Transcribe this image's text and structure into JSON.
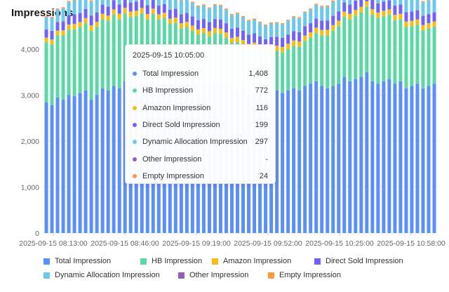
{
  "header": {
    "title": "Impressions"
  },
  "colors": {
    "total": "#5b8ff9",
    "hb": "#5ad8a6",
    "amazon": "#f6bd16",
    "direct": "#7262fd",
    "dynamic": "#6dc8ec",
    "other": "#945fb9",
    "empty": "#ff9845",
    "grid": "#e8e8e8"
  },
  "tooltip": {
    "time": "2025-09-15 10:05:00",
    "rows": [
      {
        "name": "Total Impression",
        "value": "1,408",
        "color": "#5b8ff9"
      },
      {
        "name": "HB Impression",
        "value": "772",
        "color": "#5ad8a6"
      },
      {
        "name": "Amazon Impression",
        "value": "116",
        "color": "#f6bd16"
      },
      {
        "name": "Direct Sold Impression",
        "value": "199",
        "color": "#7262fd"
      },
      {
        "name": "Dynamic Allocation Impression",
        "value": "297",
        "color": "#6dc8ec"
      },
      {
        "name": "Other Impression",
        "value": "-",
        "color": "#945fb9"
      },
      {
        "name": "Empty Impression",
        "value": "24",
        "color": "#ff9845"
      }
    ]
  },
  "chart_data": {
    "type": "bar",
    "title": "Impressions",
    "ylim": [
      0,
      4000
    ],
    "yticks": [
      0,
      1000,
      2000,
      3000,
      4000
    ],
    "ytick_labels": [
      "0",
      "1,000",
      "2,000",
      "3,000",
      "4,000"
    ],
    "xtick_labels": [
      "2025-09-15 08:13:00",
      "2025-09-15 08:46:00",
      "2025-09-15 09:19:00",
      "2025-09-15 09:52:00",
      "2025-09-15 10:25:00",
      "2025-09-15 10:58:00"
    ],
    "grid": true,
    "legend_position": "bottom",
    "series": [
      {
        "name": "Total Impression",
        "key": "total",
        "values": [
          2850,
          2780,
          2950,
          2900,
          3000,
          2980,
          3050,
          3100,
          2900,
          3000,
          3150,
          3100,
          3200,
          3150,
          3300,
          3250,
          3300,
          3400,
          3300,
          3450,
          3350,
          3400,
          3300,
          3350,
          3250,
          3300,
          3250,
          3200,
          3250,
          3200,
          3300,
          3300,
          3250,
          3150,
          3200,
          3150,
          3100,
          3150,
          3100,
          3050,
          3100,
          3100,
          3050,
          3100,
          3150,
          3100,
          3200,
          3250,
          3300,
          3200,
          3150,
          3200,
          3250,
          3400,
          3300,
          3350,
          3400,
          3500,
          3300,
          3250,
          3300,
          3350,
          3250,
          3300,
          3150,
          3200,
          3250,
          3150,
          3200,
          3250
        ]
      },
      {
        "name": "HB Impression",
        "key": "hb",
        "values": [
          1300,
          1320,
          1350,
          1400,
          1420,
          1450,
          1430,
          1460,
          1500,
          1480,
          1500,
          1520,
          1550,
          1500,
          1480,
          1450,
          1420,
          1380,
          1350,
          1320,
          1300,
          1280,
          1250,
          1220,
          1200,
          1180,
          1150,
          1120,
          1100,
          1080,
          1050,
          1030,
          1000,
          980,
          950,
          930,
          900,
          880,
          860,
          850,
          850,
          860,
          880,
          900,
          920,
          950,
          980,
          1000,
          1050,
          1100,
          1150,
          1200,
          1250,
          1300,
          1350,
          1380,
          1400,
          1420,
          1450,
          1430,
          1420,
          1400,
          1380,
          1350,
          1330,
          1300,
          1280,
          1260,
          1250,
          1240
        ]
      },
      {
        "name": "Amazon Impression",
        "key": "amazon",
        "values": [
          100,
          110,
          105,
          110,
          115,
          120,
          110,
          115,
          120,
          115,
          118,
          110,
          115,
          120,
          118,
          116,
          115,
          114,
          112,
          110,
          108,
          110,
          112,
          115,
          114,
          113,
          112,
          110,
          108,
          110,
          112,
          113,
          114,
          116,
          118,
          117,
          116,
          115,
          116,
          116,
          115,
          114,
          116,
          118,
          120,
          118,
          116,
          115,
          116,
          118,
          120,
          122,
          118,
          116,
          118,
          120,
          122,
          120,
          118,
          116,
          115,
          114,
          116,
          118,
          120,
          118,
          116,
          115,
          114,
          113
        ]
      },
      {
        "name": "Direct Sold Impression",
        "key": "direct",
        "values": [
          180,
          190,
          185,
          195,
          200,
          205,
          195,
          200,
          210,
          205,
          200,
          195,
          200,
          205,
          200,
          198,
          196,
          195,
          192,
          190,
          188,
          190,
          192,
          195,
          196,
          198,
          199,
          200,
          198,
          197,
          196,
          198,
          199,
          200,
          202,
          201,
          200,
          199,
          199,
          199,
          198,
          197,
          199,
          200,
          202,
          201,
          200,
          199,
          200,
          202,
          204,
          206,
          204,
          202,
          203,
          205,
          207,
          205,
          203,
          201,
          200,
          199,
          200,
          202,
          204,
          202,
          200,
          199,
          198,
          197
        ]
      },
      {
        "name": "Dynamic Allocation Impression",
        "key": "dynamic",
        "values": [
          270,
          280,
          275,
          285,
          290,
          300,
          290,
          295,
          305,
          300,
          298,
          295,
          300,
          305,
          300,
          298,
          296,
          295,
          292,
          290,
          288,
          290,
          292,
          295,
          296,
          298,
          297,
          296,
          295,
          296,
          297,
          298,
          297,
          297,
          298,
          297,
          297,
          296,
          297,
          297,
          296,
          295,
          297,
          298,
          300,
          299,
          298,
          297,
          298,
          300,
          302,
          304,
          302,
          300,
          301,
          303,
          305,
          303,
          301,
          299,
          298,
          297,
          298,
          300,
          302,
          300,
          298,
          297,
          296,
          295
        ]
      },
      {
        "name": "Other Impression",
        "key": "other",
        "values": [
          0,
          0,
          0,
          0,
          0,
          0,
          0,
          0,
          0,
          0,
          0,
          0,
          0,
          0,
          0,
          0,
          0,
          0,
          0,
          0,
          0,
          0,
          0,
          0,
          0,
          0,
          0,
          0,
          0,
          0,
          0,
          0,
          0,
          0,
          0,
          0,
          0,
          0,
          0,
          0,
          0,
          0,
          0,
          0,
          0,
          0,
          0,
          0,
          0,
          0,
          0,
          0,
          0,
          0,
          0,
          0,
          0,
          0,
          0,
          0,
          0,
          0,
          0,
          0,
          0,
          0,
          0,
          0,
          0,
          0
        ]
      },
      {
        "name": "Empty Impression",
        "key": "empty",
        "values": [
          20,
          22,
          21,
          23,
          24,
          25,
          23,
          24,
          26,
          25,
          24,
          23,
          24,
          25,
          24,
          24,
          23,
          23,
          22,
          22,
          21,
          22,
          22,
          23,
          23,
          24,
          24,
          24,
          23,
          23,
          24,
          24,
          24,
          24,
          25,
          24,
          24,
          24,
          24,
          24,
          24,
          23,
          24,
          24,
          25,
          25,
          24,
          24,
          24,
          25,
          25,
          26,
          25,
          25,
          25,
          26,
          26,
          25,
          25,
          24,
          24,
          24,
          24,
          25,
          25,
          25,
          24,
          24,
          24,
          23
        ]
      }
    ]
  },
  "legend": {
    "rows": [
      [
        {
          "label": "Total Impression",
          "color": "#5b8ff9"
        },
        {
          "label": "HB Impression",
          "color": "#5ad8a6"
        },
        {
          "label": "Amazon Impression",
          "color": "#f6bd16"
        },
        {
          "label": "Direct Sold Impression",
          "color": "#7262fd"
        }
      ],
      [
        {
          "label": "Dynamic Allocation Impression",
          "color": "#6dc8ec"
        },
        {
          "label": "Other Impression",
          "color": "#945fb9"
        },
        {
          "label": "Empty Impression",
          "color": "#ff9845"
        }
      ]
    ]
  }
}
